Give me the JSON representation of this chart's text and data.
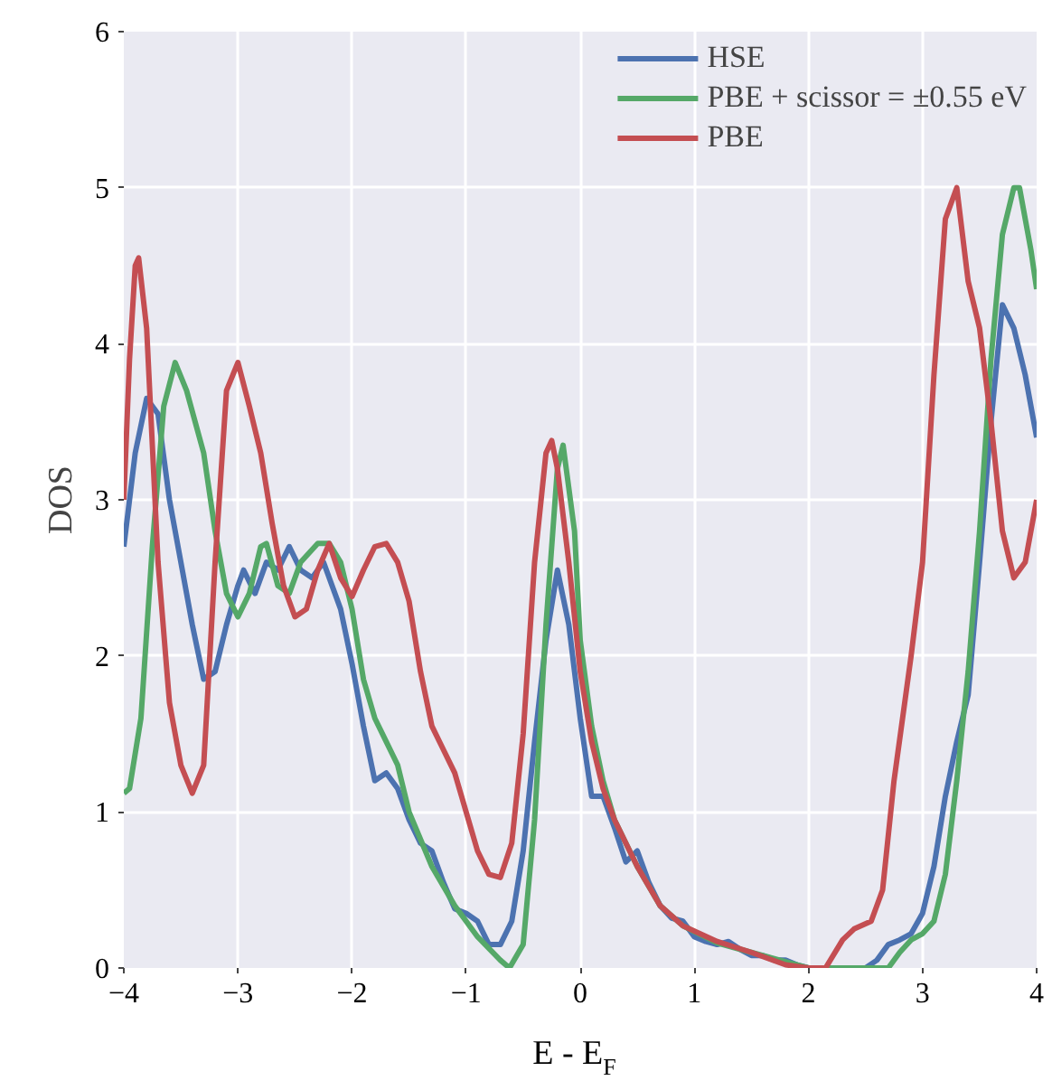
{
  "chart_data": {
    "type": "line",
    "xlabel": "E - E$_{F}$",
    "ylabel": "DOS",
    "xlim": [
      -4,
      4
    ],
    "ylim": [
      0,
      6
    ],
    "xticks": [
      -4,
      -3,
      -2,
      -1,
      0,
      1,
      2,
      3,
      4
    ],
    "yticks": [
      0,
      1,
      2,
      3,
      4,
      5,
      6
    ],
    "grid": true,
    "legend": "top right",
    "line_style": "solid",
    "marker": "none",
    "series": [
      {
        "name": "HSE",
        "color": "#4c72b0",
        "x": [
          -4,
          -3.9,
          -3.8,
          -3.7,
          -3.6,
          -3.5,
          -3.4,
          -3.3,
          -3.2,
          -3.1,
          -3.0,
          -2.95,
          -2.85,
          -2.75,
          -2.65,
          -2.55,
          -2.45,
          -2.35,
          -2.25,
          -2.1,
          -2.0,
          -1.9,
          -1.8,
          -1.7,
          -1.6,
          -1.5,
          -1.4,
          -1.3,
          -1.2,
          -1.1,
          -1.0,
          -0.9,
          -0.8,
          -0.7,
          -0.6,
          -0.5,
          -0.4,
          -0.3,
          -0.2,
          -0.1,
          0.0,
          0.1,
          0.2,
          0.3,
          0.4,
          0.5,
          0.6,
          0.7,
          0.8,
          0.9,
          1.0,
          1.1,
          1.2,
          1.3,
          1.4,
          1.5,
          1.6,
          1.7,
          1.8,
          1.9,
          2.0,
          2.2,
          2.5,
          2.6,
          2.7,
          2.8,
          2.9,
          3.0,
          3.1,
          3.2,
          3.3,
          3.4,
          3.5,
          3.6,
          3.7,
          3.8,
          3.9,
          4.0
        ],
        "values": [
          2.7,
          3.3,
          3.65,
          3.55,
          3.0,
          2.6,
          2.2,
          1.85,
          1.9,
          2.2,
          2.45,
          2.55,
          2.4,
          2.6,
          2.55,
          2.7,
          2.55,
          2.5,
          2.6,
          2.3,
          1.95,
          1.55,
          1.2,
          1.25,
          1.15,
          0.95,
          0.8,
          0.75,
          0.55,
          0.38,
          0.35,
          0.3,
          0.15,
          0.15,
          0.3,
          0.75,
          1.45,
          2.1,
          2.55,
          2.2,
          1.6,
          1.1,
          1.1,
          0.9,
          0.68,
          0.75,
          0.55,
          0.4,
          0.32,
          0.3,
          0.2,
          0.17,
          0.15,
          0.17,
          0.12,
          0.08,
          0.08,
          0.05,
          0.05,
          0.02,
          0.0,
          0.0,
          0.0,
          0.05,
          0.15,
          0.18,
          0.22,
          0.35,
          0.65,
          1.1,
          1.45,
          1.75,
          2.6,
          3.5,
          4.25,
          4.1,
          3.8,
          3.4
        ]
      },
      {
        "name": "PBE + scissor = ±0.55 eV",
        "color": "#55a868",
        "x": [
          -4,
          -3.95,
          -3.85,
          -3.75,
          -3.65,
          -3.55,
          -3.45,
          -3.3,
          -3.2,
          -3.1,
          -3.0,
          -2.9,
          -2.8,
          -2.75,
          -2.65,
          -2.55,
          -2.45,
          -2.3,
          -2.2,
          -2.1,
          -2.0,
          -1.9,
          -1.8,
          -1.7,
          -1.6,
          -1.5,
          -1.3,
          -1.1,
          -0.9,
          -0.7,
          -0.62,
          -0.5,
          -0.4,
          -0.3,
          -0.2,
          -0.15,
          -0.05,
          0.0,
          0.1,
          0.2,
          0.3,
          0.5,
          0.7,
          0.9,
          1.2,
          1.5,
          1.8,
          2.0,
          2.7,
          2.8,
          2.9,
          3.0,
          3.1,
          3.2,
          3.3,
          3.4,
          3.5,
          3.6,
          3.7,
          3.8,
          3.85,
          3.95,
          4.0
        ],
        "values": [
          1.12,
          1.15,
          1.6,
          2.7,
          3.6,
          3.88,
          3.7,
          3.3,
          2.8,
          2.4,
          2.25,
          2.4,
          2.7,
          2.72,
          2.45,
          2.4,
          2.6,
          2.72,
          2.72,
          2.6,
          2.3,
          1.85,
          1.6,
          1.45,
          1.3,
          1.0,
          0.65,
          0.4,
          0.2,
          0.05,
          0.0,
          0.15,
          0.95,
          2.2,
          3.2,
          3.35,
          2.8,
          2.1,
          1.55,
          1.2,
          0.95,
          0.65,
          0.4,
          0.27,
          0.16,
          0.1,
          0.04,
          0.0,
          0.0,
          0.1,
          0.18,
          0.22,
          0.3,
          0.6,
          1.2,
          1.9,
          2.8,
          3.9,
          4.7,
          5.0,
          5.0,
          4.6,
          4.35
        ]
      },
      {
        "name": "PBE",
        "color": "#c44e52",
        "x": [
          -4,
          -3.95,
          -3.9,
          -3.87,
          -3.8,
          -3.7,
          -3.6,
          -3.5,
          -3.4,
          -3.3,
          -3.2,
          -3.1,
          -3.0,
          -2.9,
          -2.8,
          -2.7,
          -2.6,
          -2.5,
          -2.4,
          -2.3,
          -2.2,
          -2.1,
          -2.0,
          -1.9,
          -1.8,
          -1.7,
          -1.6,
          -1.5,
          -1.4,
          -1.3,
          -1.2,
          -1.1,
          -1.0,
          -0.9,
          -0.8,
          -0.7,
          -0.6,
          -0.5,
          -0.4,
          -0.3,
          -0.25,
          -0.2,
          -0.1,
          0.0,
          0.1,
          0.2,
          0.3,
          0.5,
          0.7,
          0.9,
          1.2,
          1.5,
          1.8,
          2.0,
          2.15,
          2.3,
          2.4,
          2.55,
          2.65,
          2.75,
          2.9,
          3.0,
          3.1,
          3.2,
          3.3,
          3.4,
          3.5,
          3.6,
          3.7,
          3.8,
          3.9,
          4.0
        ],
        "values": [
          3.0,
          3.9,
          4.5,
          4.55,
          4.1,
          2.6,
          1.7,
          1.3,
          1.12,
          1.3,
          2.6,
          3.7,
          3.88,
          3.6,
          3.3,
          2.85,
          2.45,
          2.25,
          2.3,
          2.55,
          2.72,
          2.5,
          2.38,
          2.55,
          2.7,
          2.72,
          2.6,
          2.35,
          1.9,
          1.55,
          1.4,
          1.25,
          1.0,
          0.75,
          0.6,
          0.58,
          0.8,
          1.5,
          2.6,
          3.3,
          3.38,
          3.2,
          2.6,
          1.9,
          1.45,
          1.15,
          0.95,
          0.65,
          0.4,
          0.27,
          0.17,
          0.1,
          0.02,
          0.0,
          0.0,
          0.18,
          0.25,
          0.3,
          0.5,
          1.2,
          2.0,
          2.6,
          3.8,
          4.8,
          5.0,
          4.4,
          4.1,
          3.5,
          2.8,
          2.5,
          2.6,
          3.0
        ]
      }
    ]
  }
}
